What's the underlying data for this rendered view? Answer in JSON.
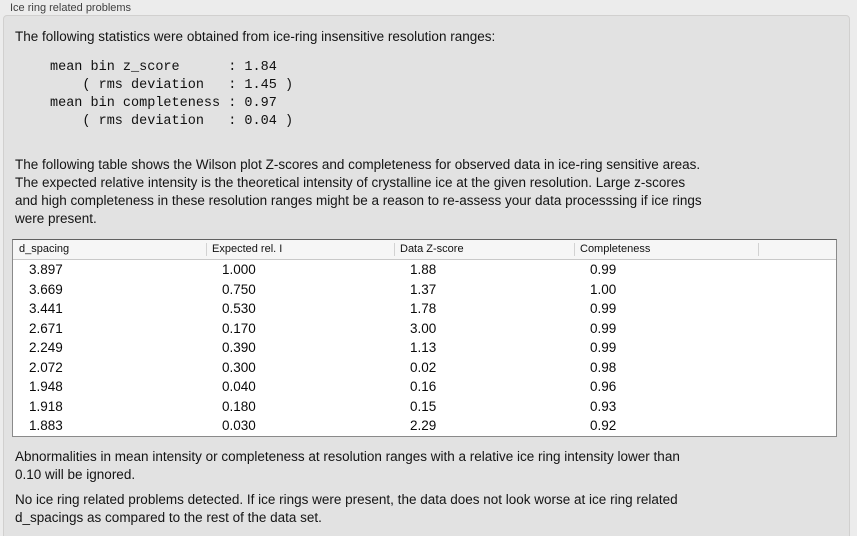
{
  "panel": {
    "title": "Ice ring related problems"
  },
  "intro_text": "The following statistics were obtained from ice-ring insensitive resolution ranges:",
  "stats_block": {
    "text": "mean bin z_score      : 1.84\n    ( rms deviation   : 1.45 )\nmean bin completeness : 0.97\n    ( rms deviation   : 0.04 )",
    "mean_bin_z_score": "1.84",
    "z_score_rms_deviation": "1.45",
    "mean_bin_completeness": "0.97",
    "completeness_rms_deviation": "0.04"
  },
  "description_text": "The following table shows the Wilson plot Z-scores and completeness for observed data in ice-ring sensitive areas.\nThe expected relative intensity is the theoretical intensity of crystalline ice at the given resolution. Large z-scores\nand high completeness in these resolution ranges might be a reason to re-assess your data processsing if ice rings\nwere present.",
  "table": {
    "columns": [
      "d_spacing",
      "Expected rel. I",
      "Data Z-score",
      "Completeness"
    ],
    "rows": [
      [
        "3.897",
        "1.000",
        "1.88",
        "0.99"
      ],
      [
        "3.669",
        "0.750",
        "1.37",
        "1.00"
      ],
      [
        "3.441",
        "0.530",
        "1.78",
        "0.99"
      ],
      [
        "2.671",
        "0.170",
        "3.00",
        "0.99"
      ],
      [
        "2.249",
        "0.390",
        "1.13",
        "0.99"
      ],
      [
        "2.072",
        "0.300",
        "0.02",
        "0.98"
      ],
      [
        "1.948",
        "0.040",
        "0.16",
        "0.96"
      ],
      [
        "1.918",
        "0.180",
        "0.15",
        "0.93"
      ],
      [
        "1.883",
        "0.030",
        "2.29",
        "0.92"
      ]
    ]
  },
  "ignore_note_text": "Abnormalities in mean intensity or completeness at resolution ranges with a relative ice ring intensity lower than\n0.10 will be ignored.",
  "conclusion_text": "No ice ring related problems detected. If ice rings were present, the data does not look worse at ice ring related\nd_spacings as compared to the rest of the data set.",
  "colors": {
    "page_bg": "#ececec",
    "panel_bg": "#e2e2e2",
    "panel_border": "#d1d0cf",
    "table_header_bg": "#f6f6f6",
    "table_border": "#8a8a8a",
    "text": "#141414"
  }
}
